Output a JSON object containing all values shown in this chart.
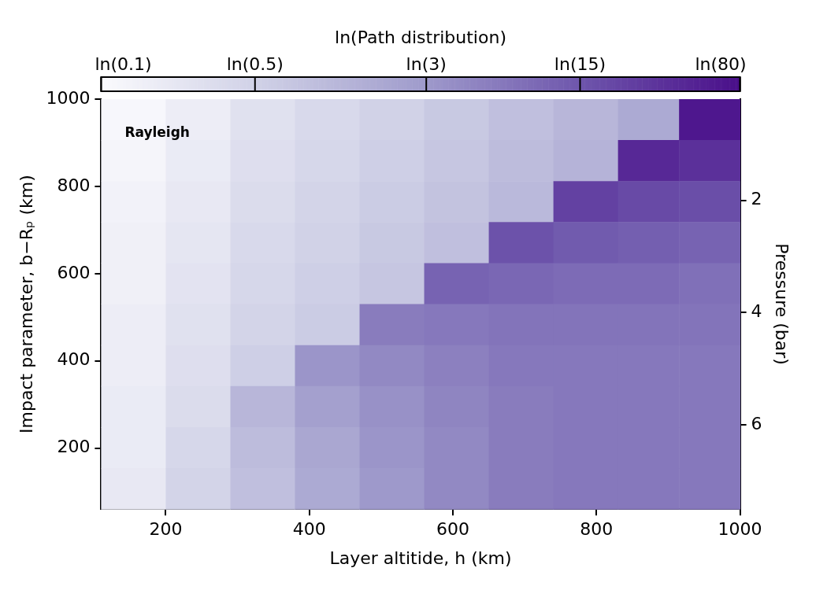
{
  "chart_data": {
    "type": "heatmap",
    "xlabel": "Layer altitide, h (km)",
    "ylabel": "Impact parameter, b−Rₚ (km)",
    "y2label": "Pressure (bar)",
    "clabel": "ln(Path distribution)",
    "annotations": [
      "Rayleigh"
    ],
    "x": [
      155,
      245,
      335,
      425,
      515,
      605,
      695,
      785,
      875,
      955
    ],
    "y": [
      953,
      859,
      765,
      671,
      577,
      483,
      389,
      295,
      201,
      107
    ],
    "cells": [
      [
        -2.2,
        -1.8,
        -1.3,
        -1.0,
        -0.7,
        -0.4,
        -0.1,
        0.2,
        0.6,
        4.2
      ],
      [
        -2.1,
        -1.7,
        -1.2,
        -0.9,
        -0.6,
        -0.3,
        0.0,
        0.3,
        3.8,
        3.6
      ],
      [
        -2.0,
        -1.6,
        -1.1,
        -0.8,
        -0.5,
        -0.2,
        0.1,
        3.2,
        3.0,
        2.9
      ],
      [
        -1.9,
        -1.5,
        -1.0,
        -0.7,
        -0.4,
        -0.1,
        2.8,
        2.6,
        2.5,
        2.4
      ],
      [
        -1.9,
        -1.4,
        -0.9,
        -0.6,
        -0.3,
        2.4,
        2.3,
        2.2,
        2.2,
        2.1
      ],
      [
        -1.8,
        -1.3,
        -0.8,
        -0.5,
        1.8,
        1.9,
        2.0,
        2.0,
        2.0,
        2.0
      ],
      [
        -1.8,
        -1.2,
        -0.6,
        1.2,
        1.5,
        1.7,
        1.9,
        1.9,
        1.9,
        1.9
      ],
      [
        -1.7,
        -1.1,
        0.2,
        0.9,
        1.3,
        1.6,
        1.8,
        1.9,
        1.9,
        1.9
      ],
      [
        -1.7,
        -0.9,
        0.0,
        0.7,
        1.2,
        1.5,
        1.8,
        1.9,
        1.9,
        1.9
      ],
      [
        -1.6,
        -0.8,
        -0.1,
        0.6,
        1.1,
        1.5,
        1.8,
        1.9,
        1.9,
        1.9
      ]
    ],
    "xlim": [
      110,
      1000
    ],
    "xticks": [
      200,
      400,
      600,
      800,
      1000
    ],
    "ylim": [
      60,
      1000
    ],
    "yticks": [
      200,
      400,
      600,
      800,
      1000
    ],
    "y2lim": [
      7.5,
      0.2
    ],
    "y2ticks": [
      2,
      4,
      6
    ],
    "clim": [
      -2.303,
      4.382
    ],
    "cticks": [
      {
        "value": -2.303,
        "label": "ln(0.1)"
      },
      {
        "value": -0.693,
        "label": "ln(0.5)"
      },
      {
        "value": 1.099,
        "label": "ln(3)"
      },
      {
        "value": 2.708,
        "label": "ln(15)"
      },
      {
        "value": 4.382,
        "label": "ln(80)"
      }
    ],
    "grid": false
  }
}
